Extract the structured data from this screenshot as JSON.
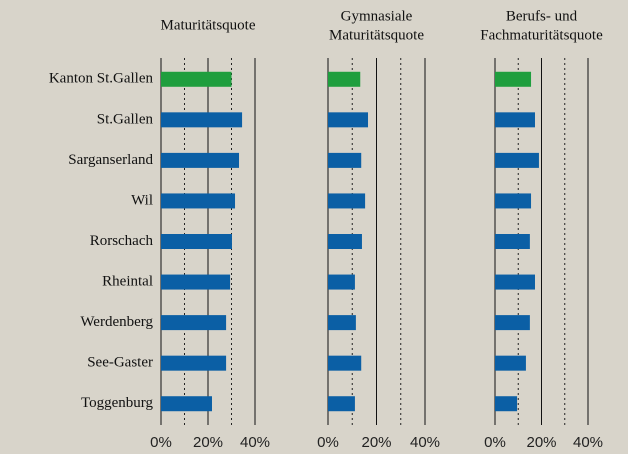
{
  "chart_data": [
    {
      "type": "bar",
      "orientation": "horizontal",
      "title": [
        "Maturitätsquote"
      ],
      "categories": [
        "Kanton St.Gallen",
        "St.Gallen",
        "Sarganserland",
        "Wil",
        "Rorschach",
        "Rheintal",
        "Werdenberg",
        "See-Gaster",
        "Toggenburg"
      ],
      "values": [
        30,
        34.5,
        33.2,
        31.5,
        30.2,
        29.4,
        27.7,
        27.7,
        21.7
      ],
      "color": "#0b5fa5",
      "highlight": {
        "index": 0,
        "color": "#1f9e3e"
      },
      "xlim": [
        0,
        40
      ],
      "xticks": [
        {
          "value": 0,
          "label": "0%"
        },
        {
          "value": 20,
          "label": "20%"
        },
        {
          "value": 40,
          "label": "40%"
        }
      ],
      "xminor": [
        10,
        30
      ]
    },
    {
      "type": "bar",
      "orientation": "horizontal",
      "title": [
        "Gymnasiale",
        "Maturitätsquote"
      ],
      "values": [
        13.3,
        16.5,
        13.7,
        15.3,
        14,
        11.1,
        11.5,
        13.7,
        11.1
      ],
      "color": "#0b5fa5",
      "highlight": {
        "index": 0,
        "color": "#1f9e3e"
      },
      "xlim": [
        0,
        40
      ],
      "xticks": [
        {
          "value": 0,
          "label": "0%"
        },
        {
          "value": 20,
          "label": "20%"
        },
        {
          "value": 40,
          "label": "40%"
        }
      ],
      "xminor": [
        10,
        30
      ]
    },
    {
      "type": "bar",
      "orientation": "horizontal",
      "title": [
        "Berufs- und",
        "Fachmaturitätsquote"
      ],
      "values": [
        15.5,
        17.2,
        18.9,
        15.5,
        15,
        17.2,
        15,
        13.3,
        9.5
      ],
      "color": "#0b5fa5",
      "highlight": {
        "index": 0,
        "color": "#1f9e3e"
      },
      "xlim": [
        0,
        40
      ],
      "xticks": [
        {
          "value": 0,
          "label": "0%"
        },
        {
          "value": 20,
          "label": "20%"
        },
        {
          "value": 40,
          "label": "40%"
        }
      ],
      "xminor": [
        10,
        30
      ]
    }
  ]
}
